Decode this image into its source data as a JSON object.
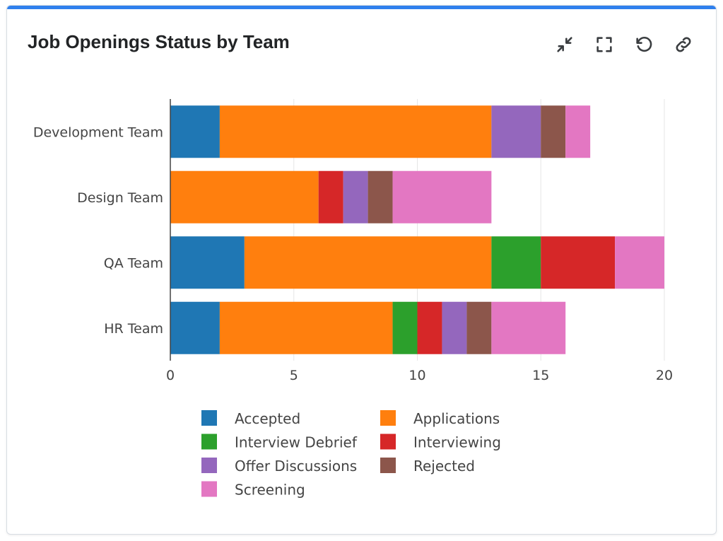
{
  "card": {
    "title": "Job Openings Status by Team",
    "accent_color": "#2f80ed"
  },
  "toolbar": {
    "buttons": [
      {
        "name": "collapse-button",
        "icon": "collapse-arrows-icon"
      },
      {
        "name": "fullscreen-button",
        "icon": "fullscreen-icon"
      },
      {
        "name": "refresh-button",
        "icon": "refresh-icon"
      },
      {
        "name": "link-button",
        "icon": "link-icon"
      }
    ]
  },
  "chart_data": {
    "type": "bar",
    "orientation": "horizontal",
    "stacked": true,
    "categories": [
      "Development Team",
      "Design Team",
      "QA Team",
      "HR Team"
    ],
    "xlim": [
      0,
      20
    ],
    "xticks": [
      0,
      5,
      10,
      15,
      20
    ],
    "grid": true,
    "legend_position": "bottom",
    "series": [
      {
        "name": "Accepted",
        "color": "#1f77b4",
        "values": [
          2,
          0,
          3,
          2
        ]
      },
      {
        "name": "Applications",
        "color": "#ff7f0e",
        "values": [
          11,
          6,
          10,
          7
        ]
      },
      {
        "name": "Interview Debrief",
        "color": "#2ca02c",
        "values": [
          0,
          0,
          2,
          1
        ]
      },
      {
        "name": "Interviewing",
        "color": "#d62728",
        "values": [
          0,
          1,
          3,
          1
        ]
      },
      {
        "name": "Offer Discussions",
        "color": "#9467bd",
        "values": [
          2,
          1,
          0,
          1
        ]
      },
      {
        "name": "Rejected",
        "color": "#8c564b",
        "values": [
          1,
          1,
          0,
          1
        ]
      },
      {
        "name": "Screening",
        "color": "#e377c2",
        "values": [
          1,
          4,
          2,
          3
        ]
      }
    ]
  }
}
